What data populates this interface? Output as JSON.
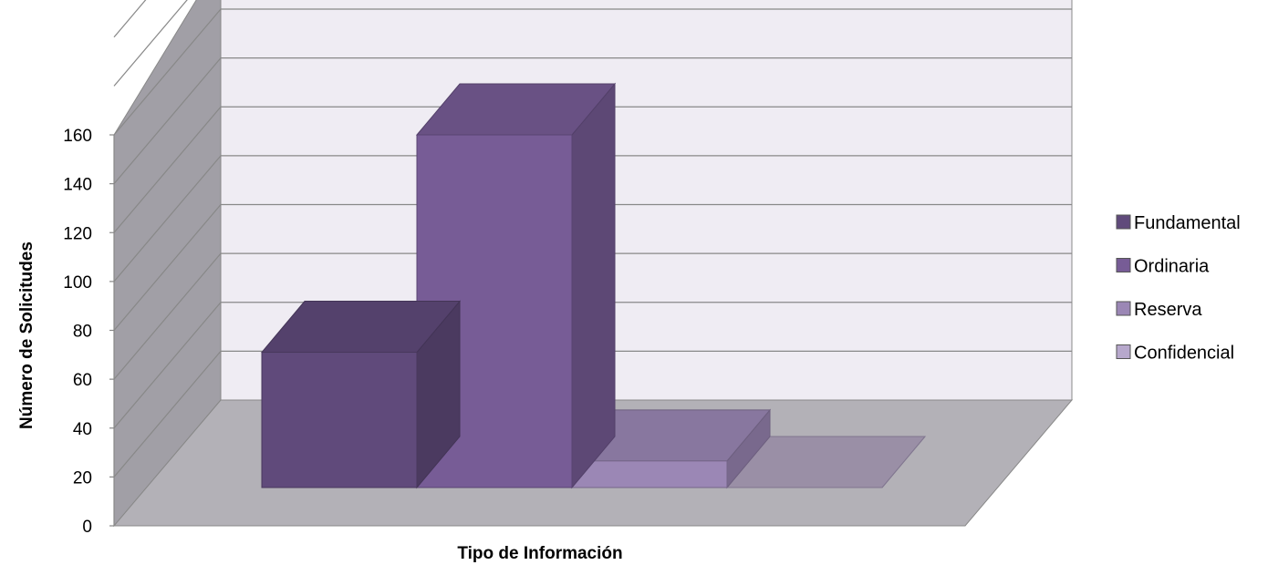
{
  "chart_data": {
    "type": "bar",
    "subtype": "3d-clustered-column",
    "categories": [
      ""
    ],
    "series": [
      {
        "name": "Fundamental",
        "values": [
          56
        ]
      },
      {
        "name": "Ordinaria",
        "values": [
          146
        ]
      },
      {
        "name": "Reserva",
        "values": [
          11
        ]
      },
      {
        "name": "Confidencial",
        "values": [
          0
        ]
      }
    ],
    "xlabel": "Tipo de Información",
    "ylabel": "Número de Solicitudes",
    "yticks": [
      "0",
      "20",
      "40",
      "60",
      "80",
      "100",
      "120",
      "140",
      "160"
    ],
    "ylim": [
      0,
      160
    ],
    "grid": true,
    "legend_position": "right",
    "colors": {
      "Fundamental": "#604a7b",
      "Ordinaria": "#775c96",
      "Reserva": "#9b87b5",
      "Confidencial": "#b7a8cc",
      "back_wall": "#efecf3",
      "side_wall": "#a19fa6",
      "floor": "#b3b1b7",
      "gridline": "#888888"
    }
  }
}
